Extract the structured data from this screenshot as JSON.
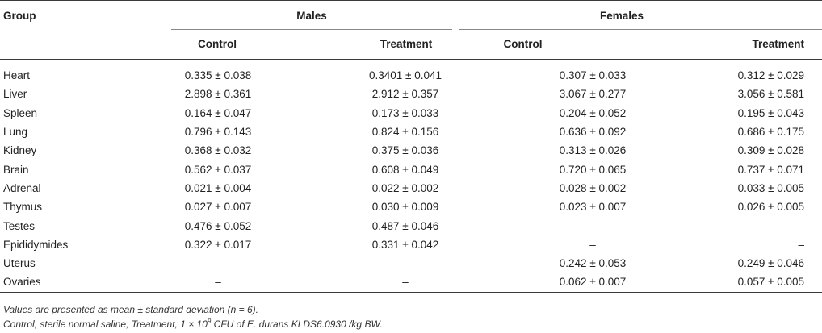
{
  "table": {
    "headers": {
      "group": "Group",
      "males": "Males",
      "females": "Females",
      "control": "Control",
      "treatment": "Treatment"
    },
    "rows": [
      {
        "group": "Heart",
        "m_control": "0.335 ± 0.038",
        "m_treatment": "0.3401 ± 0.041",
        "f_control": "0.307 ± 0.033",
        "f_treatment": "0.312 ± 0.029"
      },
      {
        "group": "Liver",
        "m_control": "2.898 ± 0.361",
        "m_treatment": "2.912 ± 0.357",
        "f_control": "3.067 ± 0.277",
        "f_treatment": "3.056 ± 0.581"
      },
      {
        "group": "Spleen",
        "m_control": "0.164 ± 0.047",
        "m_treatment": "0.173 ± 0.033",
        "f_control": "0.204 ± 0.052",
        "f_treatment": "0.195 ± 0.043"
      },
      {
        "group": "Lung",
        "m_control": "0.796 ± 0.143",
        "m_treatment": "0.824 ± 0.156",
        "f_control": "0.636 ± 0.092",
        "f_treatment": "0.686 ± 0.175"
      },
      {
        "group": "Kidney",
        "m_control": "0.368 ± 0.032",
        "m_treatment": "0.375 ± 0.036",
        "f_control": "0.313 ± 0.026",
        "f_treatment": "0.309 ± 0.028"
      },
      {
        "group": "Brain",
        "m_control": "0.562 ± 0.037",
        "m_treatment": "0.608 ± 0.049",
        "f_control": "0.720 ± 0.065",
        "f_treatment": "0.737 ± 0.071"
      },
      {
        "group": "Adrenal",
        "m_control": "0.021 ± 0.004",
        "m_treatment": "0.022 ± 0.002",
        "f_control": "0.028 ± 0.002",
        "f_treatment": "0.033 ± 0.005"
      },
      {
        "group": "Thymus",
        "m_control": "0.027 ± 0.007",
        "m_treatment": "0.030 ± 0.009",
        "f_control": "0.023 ± 0.007",
        "f_treatment": "0.026 ± 0.005"
      },
      {
        "group": "Testes",
        "m_control": "0.476 ± 0.052",
        "m_treatment": "0.487 ± 0.046",
        "f_control": "–",
        "f_treatment": "–"
      },
      {
        "group": "Epididymides",
        "m_control": "0.322 ± 0.017",
        "m_treatment": "0.331 ± 0.042",
        "f_control": "–",
        "f_treatment": "–"
      },
      {
        "group": "Uterus",
        "m_control": "–",
        "m_treatment": "–",
        "f_control": "0.242 ± 0.053",
        "f_treatment": "0.249 ± 0.046"
      },
      {
        "group": "Ovaries",
        "m_control": "–",
        "m_treatment": "–",
        "f_control": "0.062 ± 0.007",
        "f_treatment": "0.057 ± 0.005"
      }
    ]
  },
  "footnotes": {
    "line1": "Values are presented as mean ± standard deviation (n = 6).",
    "line2_before": "Control, sterile normal saline; Treatment, 1 × 10",
    "line2_sup": "9",
    "line2_after": " CFU of E. durans KLDS6.0930 /kg BW."
  }
}
